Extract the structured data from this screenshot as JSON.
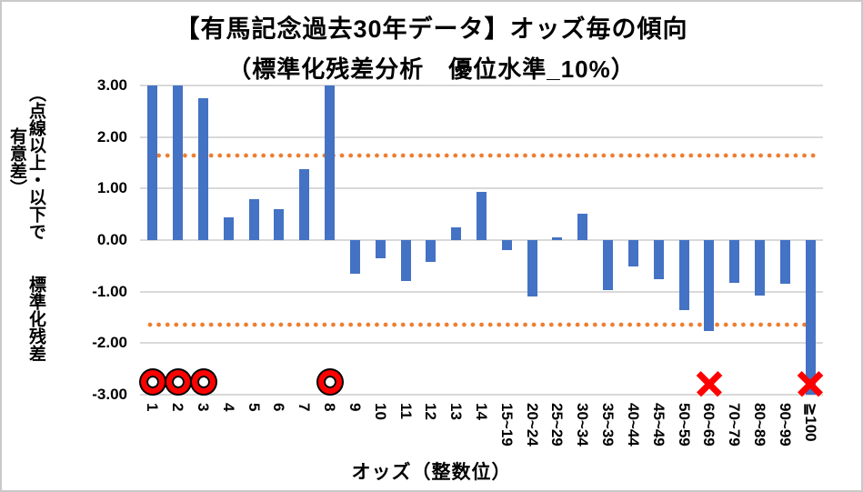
{
  "chart_data": {
    "type": "bar",
    "title": "【有馬記念過去30年データ】オッズ毎の傾向",
    "subtitle": "（標準化残差分析　優位水準_10%）",
    "xlabel": "オッズ（整数位）",
    "ylabel": "標準化残差",
    "ylabel_note": "（点線以上・以下で有意差）",
    "ylim": [
      -3,
      3
    ],
    "ytick_labels": [
      "3.00",
      "2.00",
      "1.00",
      "0.00",
      "-1.00",
      "-2.00",
      "-3.00"
    ],
    "grid": true,
    "legend": "none",
    "categories": [
      "1",
      "2",
      "3",
      "4",
      "5",
      "6",
      "7",
      "8",
      "9",
      "10",
      "11",
      "12",
      "13",
      "14",
      "15~19",
      "20~24",
      "25~29",
      "30~34",
      "35~39",
      "40~44",
      "45~49",
      "50~59",
      "60~69",
      "70~79",
      "80~89",
      "90~99",
      "≧100"
    ],
    "values": [
      3.0,
      3.0,
      2.75,
      0.45,
      0.8,
      0.6,
      1.37,
      3.0,
      -0.65,
      -0.35,
      -0.8,
      -0.42,
      0.25,
      0.93,
      -0.19,
      -1.1,
      0.05,
      0.51,
      -0.97,
      -0.52,
      -0.76,
      -1.36,
      -1.77,
      -0.83,
      -1.07,
      -0.85,
      -3.0
    ],
    "clipped_above_axis_max": [
      "1",
      "2",
      "8"
    ],
    "clipped_below_axis_min": [
      "≧100"
    ],
    "bar_color": "#4472C4",
    "gridline_color": "#D9D9D9",
    "threshold_lines": {
      "upper": 1.645,
      "lower": -1.645,
      "color": "#ED7D31",
      "style": "dotted"
    },
    "markers": {
      "circle": {
        "categories": [
          "1",
          "2",
          "3",
          "8"
        ],
        "color": "#FF0000",
        "outline_color": "#000000"
      },
      "cross": {
        "categories": [
          "60~69",
          "≧100"
        ],
        "color": "#FF0000"
      }
    }
  }
}
